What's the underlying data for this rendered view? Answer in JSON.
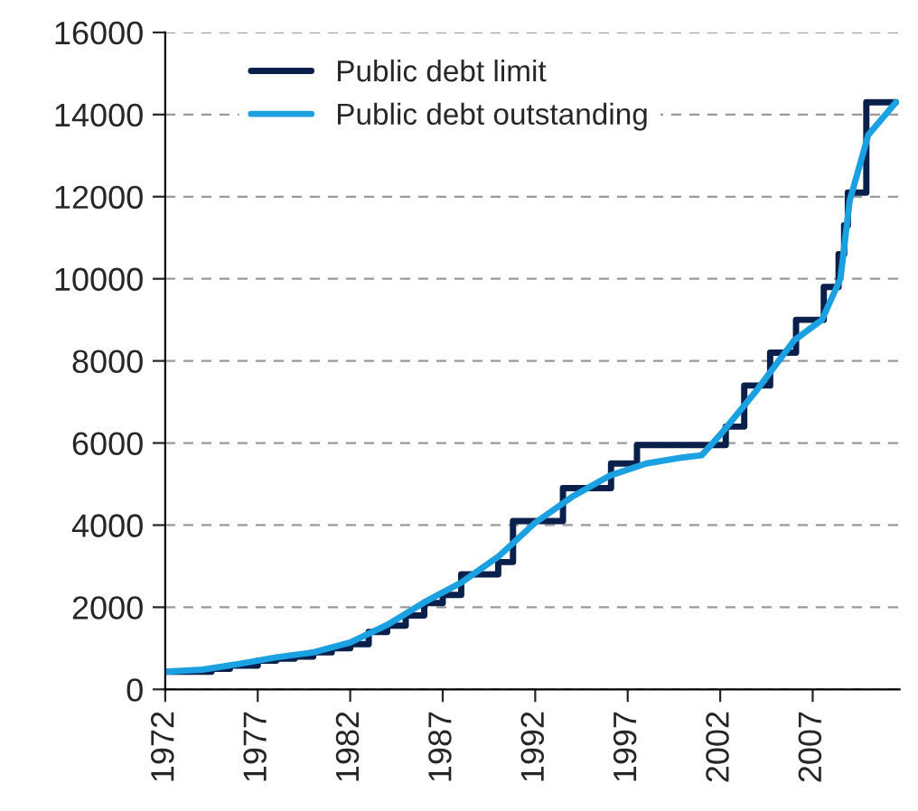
{
  "chart_data": {
    "type": "line",
    "xlim": [
      1972,
      2011.7
    ],
    "xticks": [
      1972,
      1977,
      1982,
      1987,
      1992,
      1997,
      2002,
      2007
    ],
    "ylim": [
      0,
      16000
    ],
    "yticks": [
      0,
      2000,
      4000,
      6000,
      8000,
      10000,
      12000,
      14000,
      16000
    ],
    "grid": "y",
    "legend": "top left",
    "series": [
      {
        "name": "Public debt limit",
        "color": "#0a1f4a",
        "type": "step",
        "x": [
          1972,
          1974.5,
          1975.5,
          1977,
          1978,
          1979,
          1980,
          1981,
          1982,
          1983,
          1984,
          1985,
          1986,
          1987,
          1988,
          1990,
          1990.8,
          1993.5,
          1996.1,
          1997.5,
          2002.3,
          2003.3,
          2004.7,
          2006.1,
          2007.6,
          2008.4,
          2008.7,
          2008.9,
          2009.9,
          2011.5
        ],
        "values": [
          430,
          500,
          580,
          700,
          750,
          800,
          900,
          1000,
          1100,
          1400,
          1550,
          1800,
          2100,
          2300,
          2800,
          3100,
          4100,
          4900,
          5500,
          5950,
          6400,
          7400,
          8200,
          9000,
          9800,
          10600,
          11300,
          12100,
          14300,
          14300
        ]
      },
      {
        "name": "Public debt outstanding",
        "color": "#1ba1e2",
        "x": [
          1972,
          1974,
          1976,
          1978,
          1980,
          1982,
          1984,
          1986,
          1988,
          1990,
          1992,
          1994,
          1996,
          1998,
          2000,
          2001,
          2002,
          2004,
          2006,
          2007.5,
          2008.5,
          2009,
          2010,
          2011.5
        ],
        "values": [
          430,
          480,
          620,
          780,
          900,
          1140,
          1570,
          2120,
          2600,
          3230,
          4060,
          4690,
          5200,
          5500,
          5650,
          5700,
          6200,
          7300,
          8500,
          9000,
          10000,
          11900,
          13500,
          14300
        ]
      }
    ]
  }
}
